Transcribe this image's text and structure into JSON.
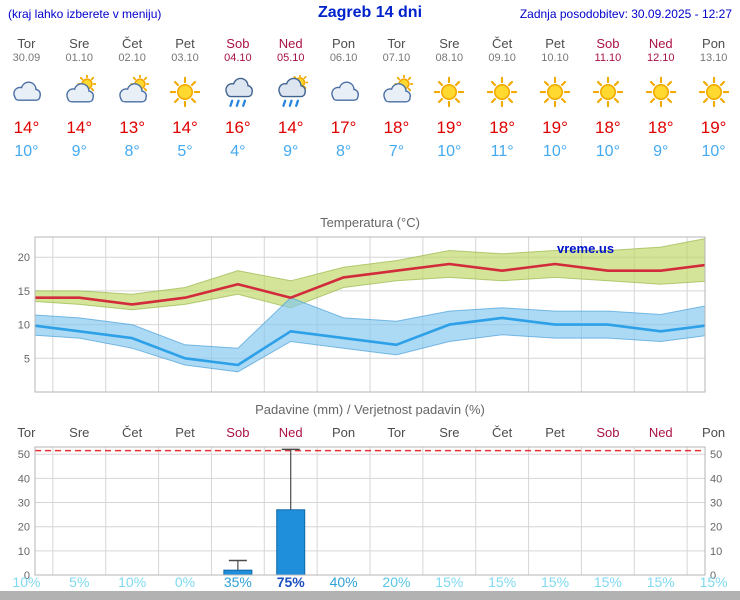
{
  "header": {
    "hint": "(kraj lahko izberete v meniju)",
    "title": "Zagreb 14 dni",
    "updated": "Zadnja posodobitev: 30.09.2025 - 12:27"
  },
  "watermark": "vreme.us",
  "colors": {
    "accent_blue": "#0022cc",
    "tmax_text": "#e00000",
    "tmin_text": "#44aaf0",
    "weekend": "#aa1144",
    "weekday": "#4d4d4d",
    "date_gray": "#777777",
    "temp_line_max": "#d22c3c",
    "temp_line_min": "#2da0e8",
    "band_max": "#bdd563",
    "band_min": "#7fc6ef",
    "bar": "#1f8fdb",
    "limit_line": "#e83030"
  },
  "days": [
    {
      "name": "Tor",
      "date": "30.09",
      "weekend": false,
      "icon": "cloud",
      "tmax": "14°",
      "tmin": "10°",
      "prob": "10%",
      "prob_color": "#7fd9f0",
      "prob_bold": false
    },
    {
      "name": "Sre",
      "date": "01.10",
      "weekend": false,
      "icon": "sun-cloud",
      "tmax": "14°",
      "tmin": "9°",
      "prob": "5%",
      "prob_color": "#7fd9f0",
      "prob_bold": false
    },
    {
      "name": "Čet",
      "date": "02.10",
      "weekend": false,
      "icon": "sun-cloud",
      "tmax": "13°",
      "tmin": "8°",
      "prob": "10%",
      "prob_color": "#7fd9f0",
      "prob_bold": false
    },
    {
      "name": "Pet",
      "date": "03.10",
      "weekend": false,
      "icon": "sun",
      "tmax": "14°",
      "tmin": "5°",
      "prob": "0%",
      "prob_color": "#7fd9f0",
      "prob_bold": false
    },
    {
      "name": "Sob",
      "date": "04.10",
      "weekend": true,
      "icon": "rain",
      "tmax": "16°",
      "tmin": "4°",
      "prob": "35%",
      "prob_color": "#2fa0d8",
      "prob_bold": false
    },
    {
      "name": "Ned",
      "date": "05.10",
      "weekend": true,
      "icon": "sun-rain",
      "tmax": "14°",
      "tmin": "9°",
      "prob": "75%",
      "prob_color": "#1a4fc0",
      "prob_bold": true
    },
    {
      "name": "Pon",
      "date": "06.10",
      "weekend": false,
      "icon": "cloud",
      "tmax": "17°",
      "tmin": "8°",
      "prob": "40%",
      "prob_color": "#2fa0d8",
      "prob_bold": false
    },
    {
      "name": "Tor",
      "date": "07.10",
      "weekend": false,
      "icon": "sun-cloud",
      "tmax": "18°",
      "tmin": "7°",
      "prob": "20%",
      "prob_color": "#55c6e8",
      "prob_bold": false
    },
    {
      "name": "Sre",
      "date": "08.10",
      "weekend": false,
      "icon": "sun",
      "tmax": "19°",
      "tmin": "10°",
      "prob": "15%",
      "prob_color": "#7fd9f0",
      "prob_bold": false
    },
    {
      "name": "Čet",
      "date": "09.10",
      "weekend": false,
      "icon": "sun",
      "tmax": "18°",
      "tmin": "11°",
      "prob": "15%",
      "prob_color": "#7fd9f0",
      "prob_bold": false
    },
    {
      "name": "Pet",
      "date": "10.10",
      "weekend": false,
      "icon": "sun",
      "tmax": "19°",
      "tmin": "10°",
      "prob": "15%",
      "prob_color": "#7fd9f0",
      "prob_bold": false
    },
    {
      "name": "Sob",
      "date": "11.10",
      "weekend": true,
      "icon": "sun",
      "tmax": "18°",
      "tmin": "10°",
      "prob": "15%",
      "prob_color": "#7fd9f0",
      "prob_bold": false
    },
    {
      "name": "Ned",
      "date": "12.10",
      "weekend": true,
      "icon": "sun",
      "tmax": "18°",
      "tmin": "9°",
      "prob": "15%",
      "prob_color": "#7fd9f0",
      "prob_bold": false
    },
    {
      "name": "Pon",
      "date": "13.10",
      "weekend": false,
      "icon": "sun",
      "tmax": "19°",
      "tmin": "10°",
      "prob": "15%",
      "prob_color": "#7fd9f0",
      "prob_bold": false
    }
  ],
  "chart_data": [
    {
      "type": "line",
      "title": "Temperatura (°C)",
      "categories": [
        "Tor 30.09",
        "Sre 01.10",
        "Čet 02.10",
        "Pet 03.10",
        "Sob 04.10",
        "Ned 05.10",
        "Pon 06.10",
        "Tor 07.10",
        "Sre 08.10",
        "Čet 09.10",
        "Pet 10.10",
        "Sob 11.10",
        "Ned 12.10",
        "Pon 13.10"
      ],
      "series": [
        {
          "name": "max",
          "values": [
            14,
            14,
            13,
            14,
            16,
            14,
            17,
            18,
            19,
            18,
            19,
            18,
            18,
            19
          ]
        },
        {
          "name": "max_upper",
          "values": [
            15,
            15,
            14.5,
            15.5,
            18,
            16.5,
            18.5,
            19.5,
            21,
            20.5,
            21,
            21,
            21.5,
            23
          ]
        },
        {
          "name": "max_lower",
          "values": [
            13.5,
            13,
            12.2,
            13,
            14.5,
            12.5,
            15.5,
            16.5,
            17,
            16.5,
            17,
            16.5,
            16,
            16.5
          ]
        },
        {
          "name": "min",
          "values": [
            10,
            9,
            8,
            5,
            4,
            9,
            8,
            7,
            10,
            11,
            10,
            10,
            9,
            10
          ]
        },
        {
          "name": "min_upper",
          "values": [
            11.5,
            11,
            10,
            7,
            6.5,
            14,
            11,
            10.5,
            12,
            12.5,
            12,
            12,
            11.5,
            13
          ]
        },
        {
          "name": "min_lower",
          "values": [
            8.5,
            8,
            6.5,
            4,
            3,
            7.5,
            6.5,
            5.5,
            7.5,
            8.5,
            8,
            8,
            7.5,
            8.5
          ]
        }
      ],
      "ylim": [
        0,
        23
      ],
      "yticks": [
        5,
        10,
        15,
        20
      ],
      "grid": true,
      "legend": false
    },
    {
      "type": "bar",
      "title": "Padavine (mm) / Verjetnost padavin (%)",
      "categories": [
        "Tor",
        "Sre",
        "Čet",
        "Pet",
        "Sob",
        "Ned",
        "Pon",
        "Tor",
        "Sre",
        "Čet",
        "Pet",
        "Sob",
        "Ned",
        "Pon"
      ],
      "values": [
        0,
        0,
        0,
        0,
        2,
        27,
        0,
        0,
        0,
        0,
        0,
        0,
        0,
        0
      ],
      "whisker_high": [
        0,
        0,
        0,
        0,
        6,
        52,
        0,
        0,
        0,
        0,
        0,
        0,
        0,
        0
      ],
      "probabilities_pct": [
        10,
        5,
        10,
        0,
        35,
        75,
        40,
        20,
        15,
        15,
        15,
        15,
        15,
        15
      ],
      "ylim": [
        0,
        53
      ],
      "yticks": [
        0,
        10,
        20,
        30,
        40,
        50
      ],
      "limit_line_value": 51.5,
      "grid": true
    }
  ]
}
